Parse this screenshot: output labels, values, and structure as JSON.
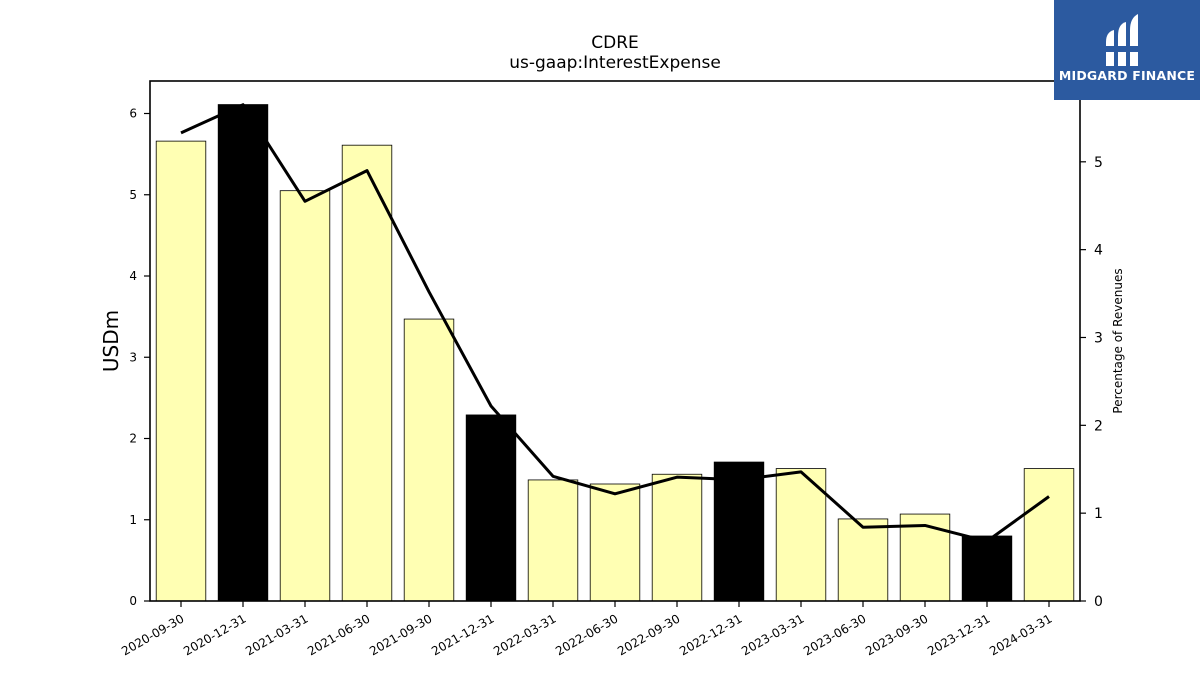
{
  "logo": {
    "brand": "MIDGARD FINANCE",
    "icon": "midgard-logo-icon",
    "color": "#2c5aa0"
  },
  "chart_data": {
    "type": "bar",
    "title": "CDRE",
    "subtitle": "us-gaap:InterestExpense",
    "ylabel": "USDm",
    "y2label": "Percentage of Revenues",
    "ylim": [
      0,
      6.4
    ],
    "y2lim": [
      0,
      5.92
    ],
    "yticks": [
      "0",
      "1",
      "2",
      "3",
      "4",
      "5",
      "6"
    ],
    "y2ticks": [
      "0",
      "1",
      "2",
      "3",
      "4",
      "5"
    ],
    "grid": false,
    "categories": [
      "2020-09-30",
      "2020-12-31",
      "2021-03-31",
      "2021-06-30",
      "2021-09-30",
      "2021-12-31",
      "2022-03-31",
      "2022-06-30",
      "2022-09-30",
      "2022-12-31",
      "2023-03-31",
      "2023-06-30",
      "2023-09-30",
      "2023-12-31",
      "2024-03-31"
    ],
    "series": [
      {
        "axis": "left",
        "kind": "bar",
        "values": [
          5.66,
          6.11,
          5.05,
          5.61,
          3.47,
          2.29,
          1.49,
          1.44,
          1.56,
          1.71,
          1.63,
          1.01,
          1.07,
          0.8,
          1.63
        ],
        "colors": [
          "#ffffb3",
          "#000000",
          "#ffffb3",
          "#ffffb3",
          "#ffffb3",
          "#000000",
          "#ffffb3",
          "#ffffb3",
          "#ffffb3",
          "#000000",
          "#ffffb3",
          "#ffffb3",
          "#ffffb3",
          "#000000",
          "#ffffb3"
        ]
      },
      {
        "axis": "right",
        "kind": "line",
        "values": [
          5.33,
          5.65,
          4.55,
          4.9,
          3.52,
          2.22,
          1.42,
          1.22,
          1.41,
          1.38,
          1.47,
          0.84,
          0.86,
          0.68,
          1.19
        ],
        "color": "#000000"
      }
    ]
  }
}
